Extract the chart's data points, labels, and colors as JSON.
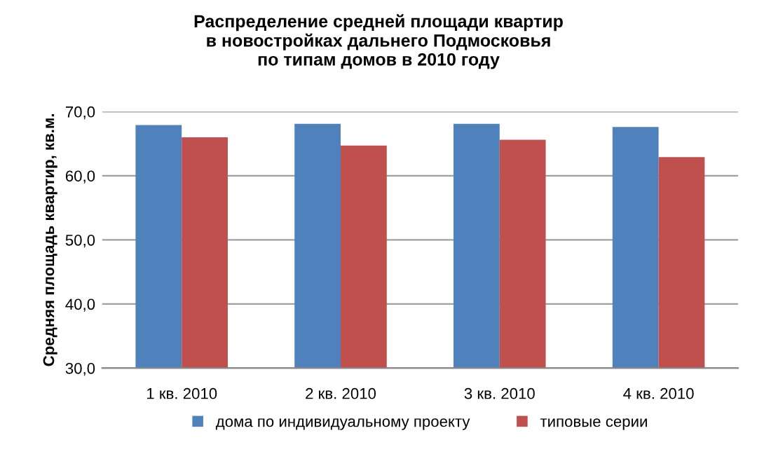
{
  "chart_data": {
    "type": "bar",
    "title": "Распределение средней площади квартир\nв новостройках дальнего Подмосковья\nпо типам домов в 2010 году",
    "ylabel": "Средняя площадь квартир, кв.м.",
    "categories": [
      "1 кв. 2010",
      "2 кв. 2010",
      "3 кв. 2010",
      "4 кв. 2010"
    ],
    "series": [
      {
        "name": "дома по индивидуальному проекту",
        "color": "#4f81bd",
        "values": [
          67.9,
          68.1,
          68.1,
          67.6
        ]
      },
      {
        "name": "типовые серии",
        "color": "#c0504d",
        "values": [
          66.0,
          64.7,
          65.6,
          62.9
        ]
      }
    ],
    "ylim": [
      30,
      70
    ],
    "yticks": [
      {
        "value": 30,
        "label": "30,0"
      },
      {
        "value": 40,
        "label": "40,0"
      },
      {
        "value": 50,
        "label": "50,0"
      },
      {
        "value": 60,
        "label": "60,0"
      },
      {
        "value": 70,
        "label": "70,0"
      }
    ],
    "grid": "y",
    "legend": "bottom"
  }
}
